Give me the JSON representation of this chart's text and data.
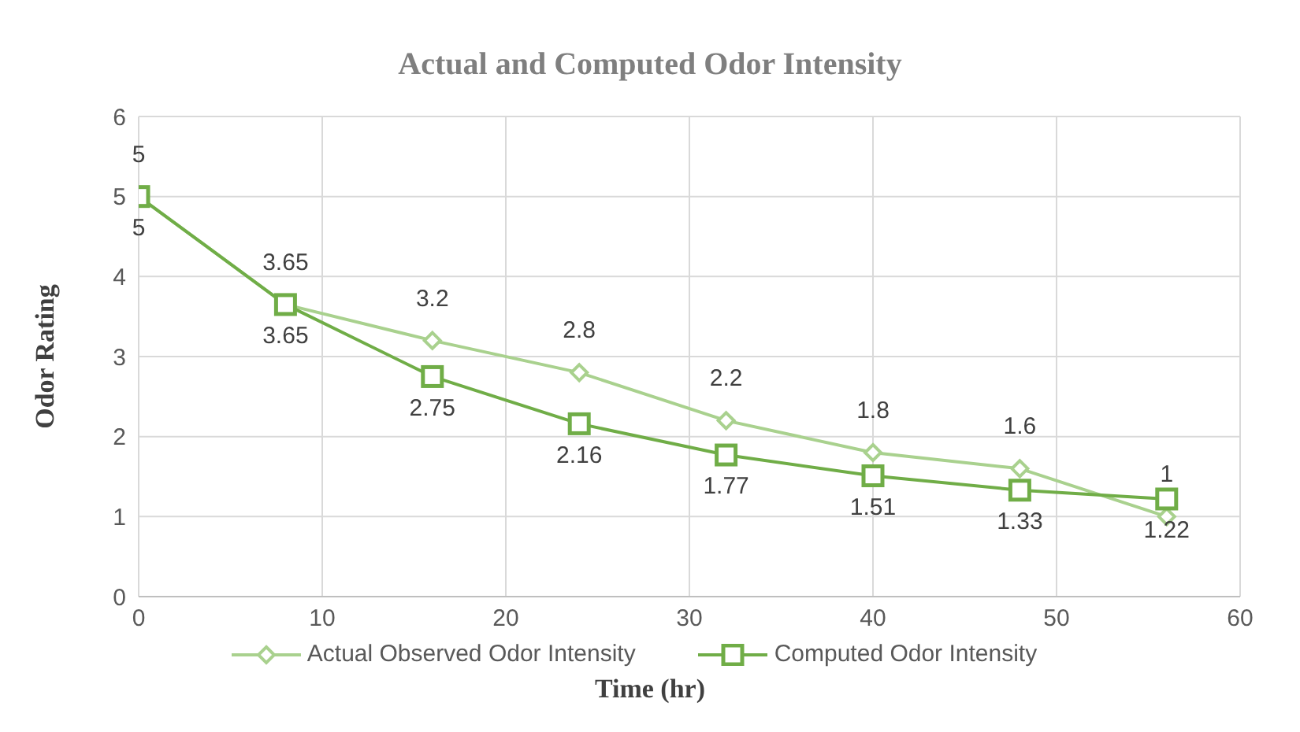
{
  "chart_data": {
    "type": "line",
    "title": "Actual and Computed Odor Intensity",
    "xlabel": "Time (hr)",
    "ylabel": "Odor Rating",
    "x": [
      0,
      8,
      16,
      24,
      32,
      40,
      48,
      56
    ],
    "series": [
      {
        "name": "Actual Observed Odor Intensity",
        "color": "#a9d18e",
        "marker": "diamond",
        "values": [
          5,
          3.65,
          3.2,
          2.8,
          2.2,
          1.8,
          1.6,
          1
        ]
      },
      {
        "name": "Computed Odor Intensity",
        "color": "#70ad47",
        "marker": "square",
        "values": [
          5,
          3.65,
          2.75,
          2.16,
          1.77,
          1.51,
          1.33,
          1.22
        ]
      }
    ],
    "xlim": [
      0,
      60
    ],
    "xticks": [
      0,
      10,
      20,
      30,
      40,
      50,
      60
    ],
    "ylim": [
      0,
      6
    ],
    "yticks": [
      0,
      1,
      2,
      3,
      4,
      5,
      6
    ],
    "grid": true,
    "legend": "bottom",
    "data_labels": true,
    "line_style": "solid"
  }
}
